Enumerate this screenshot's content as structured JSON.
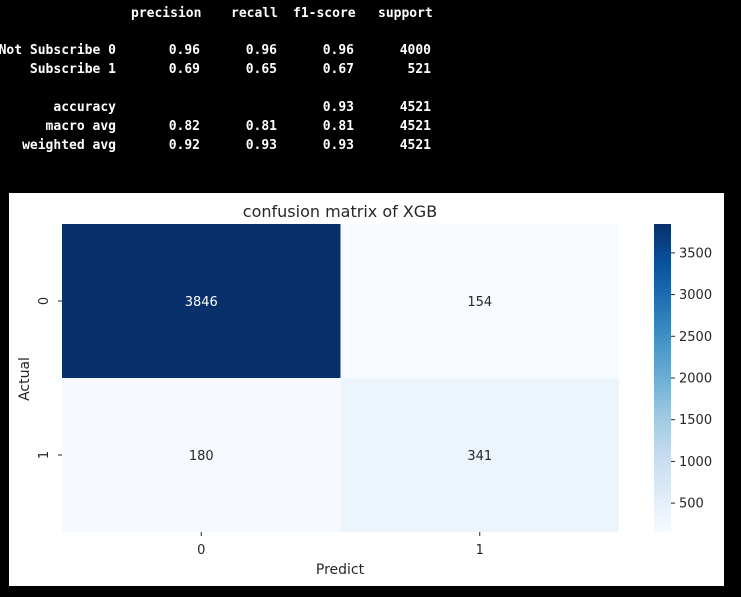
{
  "report": {
    "header": {
      "precision": "precision",
      "recall": "recall",
      "f1": "f1-score",
      "support": "support"
    },
    "rows": [
      {
        "label": "Not Subscribe 0",
        "precision": "0.96",
        "recall": "0.96",
        "f1": "0.96",
        "support": "4000"
      },
      {
        "label": "Subscribe 1",
        "precision": "0.69",
        "recall": "0.65",
        "f1": "0.67",
        "support": "521"
      },
      {
        "label": "accuracy",
        "precision": "",
        "recall": "",
        "f1": "0.93",
        "support": "4521"
      },
      {
        "label": "macro avg",
        "precision": "0.82",
        "recall": "0.81",
        "f1": "0.81",
        "support": "4521"
      },
      {
        "label": "weighted avg",
        "precision": "0.92",
        "recall": "0.93",
        "f1": "0.93",
        "support": "4521"
      }
    ]
  },
  "chart_data": {
    "type": "heatmap",
    "title": "confusion matrix of XGB",
    "xlabel": "Predict",
    "ylabel": "Actual",
    "x_categories": [
      "0",
      "1"
    ],
    "y_categories": [
      "0",
      "1"
    ],
    "values": [
      [
        3846,
        154
      ],
      [
        180,
        341
      ]
    ],
    "colormap": "Blues",
    "colorbar": {
      "range": [
        154,
        3846
      ],
      "ticks": [
        500,
        1000,
        1500,
        2000,
        2500,
        3000,
        3500
      ]
    },
    "text_colors": {
      "dark": "#ffffff",
      "light": "#262626"
    }
  }
}
